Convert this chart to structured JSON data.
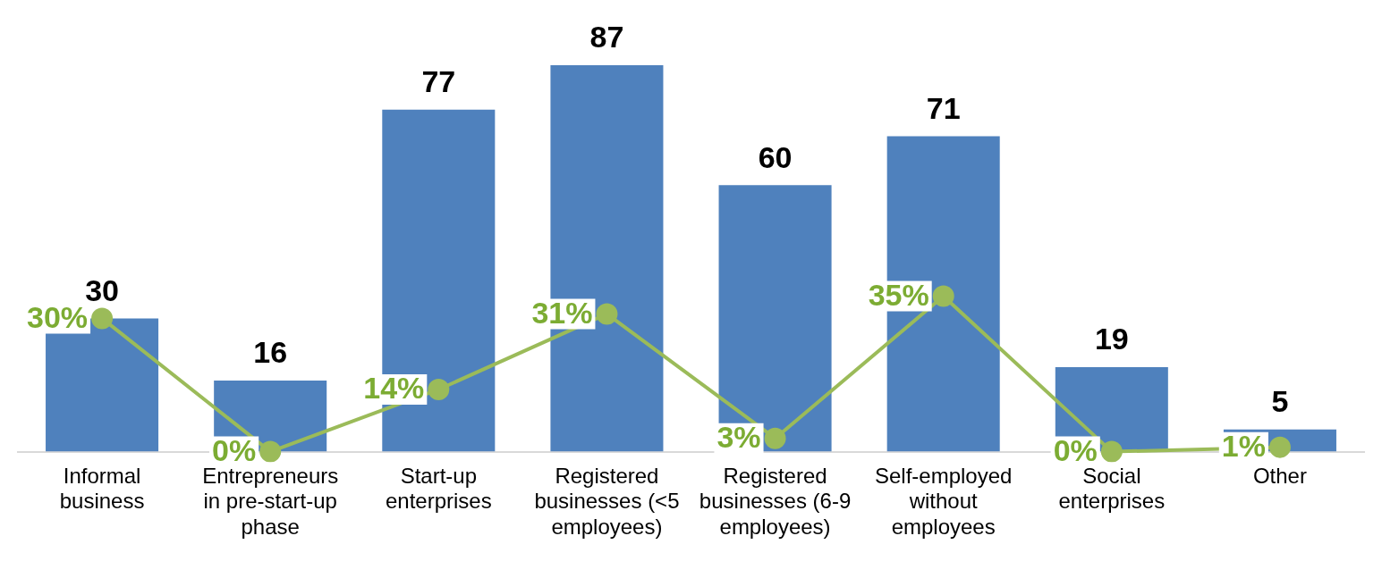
{
  "chart_data": {
    "type": "bar",
    "categories": [
      "Informal business",
      "Entrepreneurs in pre-start-up phase",
      "Start-up enterprises",
      "Registered businesses (<5 employees)",
      "Registered businesses (6-9 employees)",
      "Self-employed without employees",
      "Social enterprises",
      "Other"
    ],
    "series": [
      {
        "color": "#4f81bd",
        "values": [
          30,
          16,
          77,
          87,
          60,
          71,
          19,
          5
        ],
        "value_labels": [
          "30",
          "16",
          "77",
          "87",
          "60",
          "71",
          "19",
          "5"
        ]
      },
      {
        "type": "line",
        "color": "#9bbb59",
        "values": [
          30,
          0,
          14,
          31,
          3,
          35,
          0,
          1
        ],
        "value_labels": [
          "30%",
          "0%",
          "14%",
          "31%",
          "3%",
          "35%",
          "0%",
          "1%"
        ]
      }
    ],
    "tick_labels": "x",
    "grid": false,
    "legend": false,
    "marker": "circle",
    "line_style": "solid"
  }
}
